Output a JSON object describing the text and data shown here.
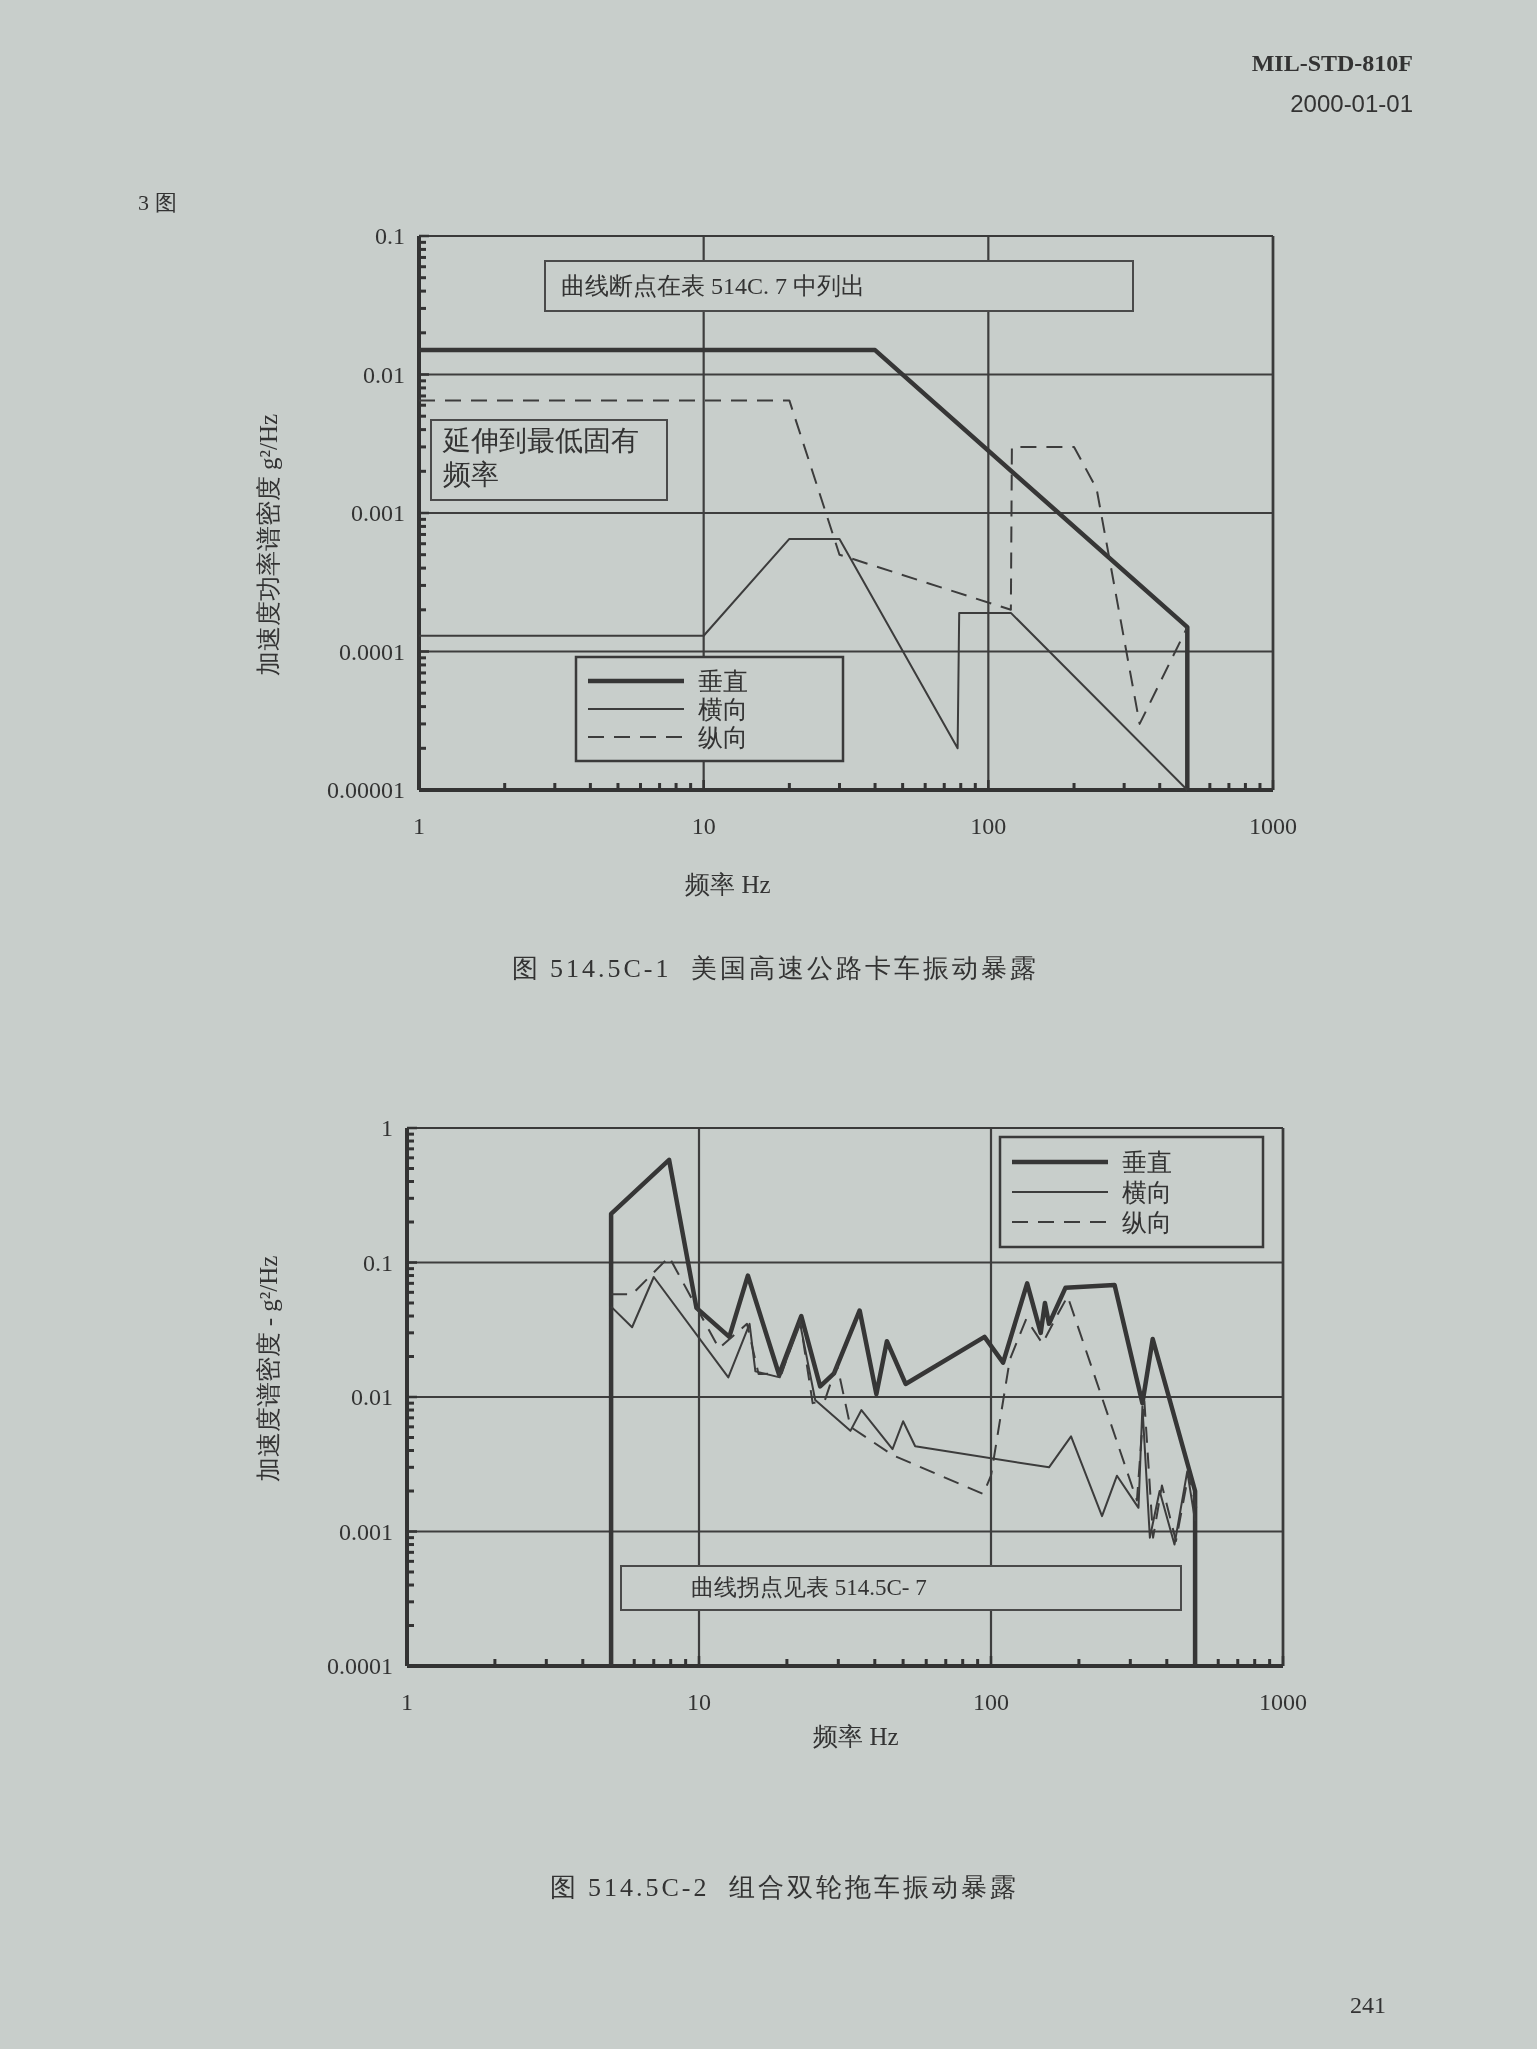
{
  "chart_data": [
    {
      "type": "line",
      "title": "图 514.5C-1  美国高速公路卡车振动暴露",
      "xlabel": "频率 Hz",
      "ylabel": "加速度功率谱密度 g²/Hz",
      "log": "xy",
      "xlim": [
        1,
        1000
      ],
      "ylim": [
        1e-05,
        0.1
      ],
      "xticks": [
        1,
        10,
        100,
        1000
      ],
      "yticks": [
        {
          "value": 1e-05,
          "label": "0.00001"
        },
        0.0001,
        0.001,
        0.01,
        0.1
      ],
      "grid": true,
      "legend": "bottom left",
      "series": [
        {
          "name": "垂直",
          "color": "#363636",
          "line_style": "solid",
          "x": [
            1,
            40,
            500,
            500
          ],
          "values": [
            0.015,
            0.015,
            0.00015,
            1e-05
          ]
        },
        {
          "name": "横向",
          "color": "#3c3c3c",
          "line_style": "solid",
          "x": [
            1,
            10,
            20,
            30,
            78,
            79,
            120,
            500
          ],
          "values": [
            0.00013,
            0.00013,
            0.00065,
            0.00065,
            2e-05,
            0.00019,
            0.00019,
            1e-05
          ]
        },
        {
          "name": "纵向",
          "color": "#3c3c3c",
          "line_style": "dashed",
          "x": [
            1,
            20,
            30,
            120,
            121,
            200,
            240,
            340,
            500
          ],
          "values": [
            0.0065,
            0.0065,
            0.0005,
            0.0002,
            0.003,
            0.003,
            0.0015,
            3e-05,
            0.00015
          ]
        }
      ],
      "annotations": [
        "曲线断点在表 514C. 7 中列出",
        "延伸到最低固有频率",
        "MIL-STD-810F",
        "2000-01-01",
        "3 图"
      ]
    },
    {
      "type": "line",
      "title": "图 514.5C-2  组合双轮拖车振动暴露",
      "xlabel": "频率 Hz",
      "ylabel": "加速度谱密度 - g²/Hz",
      "log": "xy",
      "xlim": [
        1,
        1000
      ],
      "ylim": [
        0.0001,
        1
      ],
      "xticks": [
        1,
        10,
        100,
        1000
      ],
      "yticks": [
        0.0001,
        0.001,
        0.01,
        0.1,
        1
      ],
      "grid": true,
      "legend": "top right",
      "series": [
        {
          "name": "垂直",
          "color": "#363636",
          "line_style": "solid",
          "x": [
            5,
            5,
            7.9,
            9.8,
            12.7,
            14.7,
            18.8,
            22.4,
            26,
            29,
            35.5,
            40.5,
            44,
            51,
            95,
            110,
            133,
            148,
            153,
            158,
            180,
            265,
            330,
            358,
            500,
            500
          ],
          "values": [
            0.0001,
            0.23,
            0.58,
            0.046,
            0.028,
            0.08,
            0.0147,
            0.04,
            0.012,
            0.015,
            0.044,
            0.0105,
            0.026,
            0.0125,
            0.028,
            0.018,
            0.07,
            0.03,
            0.05,
            0.035,
            0.065,
            0.068,
            0.009,
            0.027,
            0.002,
            0.0001
          ]
        },
        {
          "name": "横向",
          "color": "#3c3c3c",
          "line_style": "solid",
          "x": [
            5,
            5.9,
            7,
            12.6,
            14.9,
            15.6,
            18.9,
            22.2,
            25,
            33,
            36,
            46,
            50,
            55,
            158,
            188,
            240,
            270,
            320,
            330,
            350,
            378,
            425,
            470,
            500
          ],
          "values": [
            0.047,
            0.033,
            0.078,
            0.014,
            0.035,
            0.0155,
            0.014,
            0.035,
            0.0095,
            0.0056,
            0.008,
            0.0041,
            0.0066,
            0.0043,
            0.003,
            0.0051,
            0.0013,
            0.0026,
            0.0015,
            0.0085,
            0.0009,
            0.002,
            0.0008,
            0.0028,
            0.0012
          ]
        },
        {
          "name": "纵向",
          "color": "#3c3c3c",
          "line_style": "dashed",
          "x": [
            5,
            5.9,
            7.9,
            11.7,
            14.6,
            16,
            19.2,
            22.2,
            24.5,
            27,
            29.7,
            33,
            46,
            94,
            100,
            116,
            132,
            150,
            170,
            183,
            316,
            335,
            359,
            385,
            430,
            475,
            505
          ],
          "values": [
            0.058,
            0.058,
            0.11,
            0.023,
            0.035,
            0.0148,
            0.015,
            0.037,
            0.009,
            0.0095,
            0.0175,
            0.006,
            0.0037,
            0.0019,
            0.0026,
            0.019,
            0.038,
            0.025,
            0.042,
            0.056,
            0.0017,
            0.0095,
            0.0009,
            0.0022,
            0.00085,
            0.0027,
            0.0015
          ]
        }
      ],
      "annotations": [
        "曲线拐点见表 514.5C- 7",
        "241"
      ]
    }
  ]
}
